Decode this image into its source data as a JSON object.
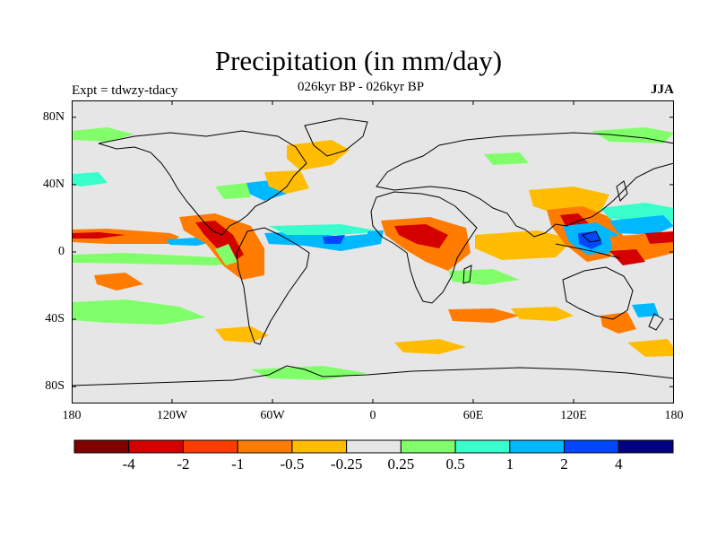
{
  "title": "Precipitation (in mm/day)",
  "experiment_label": "Expt = tdwzy-tdacy",
  "subtitle": "026kyr BP - 026kyr BP",
  "season": "JJA",
  "map": {
    "projection": "cylindrical equidistant",
    "lon_range": [
      -180,
      180
    ],
    "lat_range": [
      -90,
      90
    ],
    "background_color": "#e6e6e6",
    "y_tick_labels": [
      "80N",
      "40N",
      "0",
      "40S",
      "80S"
    ],
    "x_tick_labels": [
      "180",
      "120W",
      "60W",
      "0",
      "60E",
      "120E",
      "180"
    ]
  },
  "colorbar": {
    "colors": [
      "#800000",
      "#d40000",
      "#ff3c00",
      "#ff7c00",
      "#ffbc00",
      "#e6e6e6",
      "#80ff6a",
      "#38ffcc",
      "#00b8ff",
      "#0047ff",
      "#000080"
    ],
    "tick_labels": [
      "-4",
      "-2",
      "-1",
      "-0.5",
      "-0.25",
      "0.25",
      "0.5",
      "1",
      "2",
      "4"
    ]
  }
}
